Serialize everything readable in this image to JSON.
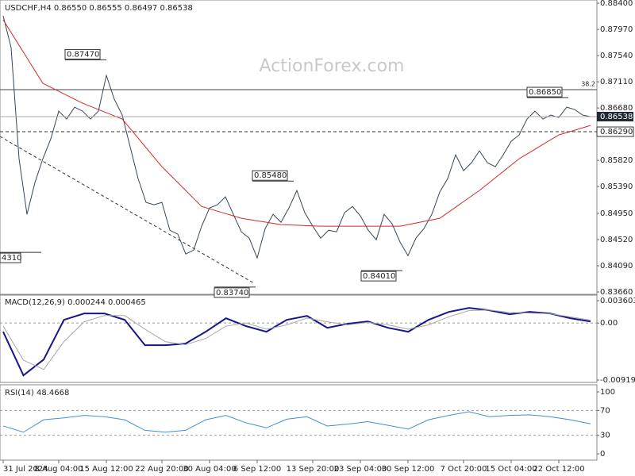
{
  "watermark": "ActionForex.com",
  "chart_data": [
    {
      "type": "line",
      "title": "USDCHF,H4 0.86550 0.86555 0.86497 0.86538",
      "ylim": [
        0.8366,
        0.884
      ],
      "yticks": [
        {
          "value": 0.884,
          "label": "0.88400"
        },
        {
          "value": 0.8797,
          "label": "0.87970"
        },
        {
          "value": 0.8754,
          "label": "0.87540"
        },
        {
          "value": 0.8711,
          "label": "0.87110"
        },
        {
          "value": 0.8668,
          "label": "0.86680"
        },
        {
          "value": 0.8582,
          "label": "0.85820"
        },
        {
          "value": 0.8539,
          "label": "0.85390"
        },
        {
          "value": 0.8495,
          "label": "0.84950"
        },
        {
          "value": 0.8452,
          "label": "0.84520"
        },
        {
          "value": 0.8409,
          "label": "0.84090"
        },
        {
          "value": 0.8366,
          "label": "0.83660"
        }
      ],
      "categories": [
        "31 Jul 2024",
        null,
        null,
        null,
        null,
        null,
        null,
        "8 Aug 04:00",
        null,
        null,
        null,
        null,
        null,
        "15 Aug 12:00",
        null,
        null,
        null,
        null,
        null,
        null,
        "22 Aug 20:00",
        null,
        null,
        null,
        null,
        null,
        "30 Aug 04:00",
        null,
        null,
        null,
        null,
        null,
        "6 Sep 12:00",
        null,
        null,
        null,
        null,
        null,
        null,
        "13 Sep 20:00",
        null,
        null,
        null,
        null,
        null,
        "23 Sep 04:00",
        null,
        null,
        null,
        null,
        null,
        "30 Sep 12:00",
        null,
        null,
        null,
        null,
        null,
        null,
        "7 Oct 20:00",
        null,
        null,
        null,
        null,
        null,
        "15 Oct 04:00",
        null,
        null,
        null,
        null,
        null,
        "22 Oct 12:00",
        null,
        null,
        null,
        null
      ],
      "series": [
        {
          "color": "#34475a",
          "values": [
            0.88192,
            0.8767,
            0.85846,
            0.84934,
            0.85455,
            0.85846,
            0.86172,
            0.86628,
            0.86498,
            0.86693,
            0.86628,
            0.86498,
            0.86628,
            0.87214,
            0.86823,
            0.86563,
            0.86042,
            0.8552,
            0.8513,
            0.85091,
            0.8513,
            0.84673,
            0.84608,
            0.84283,
            0.84348,
            0.84739,
            0.85038,
            0.85091,
            0.85221,
            0.84934,
            0.84647,
            0.84543,
            0.84217,
            0.84699,
            0.84934,
            0.84804,
            0.85038,
            0.85325,
            0.8496,
            0.84739,
            0.84543,
            0.84673,
            0.84647,
            0.8496,
            0.85064,
            0.84908,
            0.84673,
            0.84517,
            0.84934,
            0.84778,
            0.84478,
            0.84257,
            0.84543,
            0.84699,
            0.84934,
            0.85299,
            0.8552,
            0.85911,
            0.85651,
            0.85781,
            0.85976,
            0.85781,
            0.85716,
            0.85911,
            0.86133,
            0.86237,
            0.86498,
            0.86628,
            0.86498,
            0.86563,
            0.86524,
            0.86693,
            0.86654,
            0.86563,
            0.86538
          ]
        },
        {
          "color": "#d42a2a",
          "values": [
            0.88126,
            0.87918,
            0.87709,
            0.87501,
            0.87292,
            0.87084,
            0.87019,
            0.86954,
            0.86889,
            0.86823,
            0.86758,
            0.86706,
            0.86654,
            0.86602,
            0.8655,
            0.86498,
            0.86342,
            0.86185,
            0.86029,
            0.85872,
            0.85716,
            0.85586,
            0.85455,
            0.85325,
            0.85194,
            0.85064,
            0.85025,
            0.84986,
            0.84947,
            0.84908,
            0.84869,
            0.84848,
            0.84827,
            0.84807,
            0.84786,
            0.84765,
            0.8476,
            0.84755,
            0.84749,
            0.84744,
            0.84739,
            0.84739,
            0.84739,
            0.84739,
            0.84739,
            0.84739,
            0.84739,
            0.84739,
            0.84739,
            0.84739,
            0.84739,
            0.84765,
            0.84791,
            0.84817,
            0.84843,
            0.84869,
            0.8496,
            0.85051,
            0.85143,
            0.85234,
            0.85325,
            0.85429,
            0.85533,
            0.85638,
            0.85742,
            0.85846,
            0.85924,
            0.86002,
            0.86081,
            0.86159,
            0.86237,
            0.86276,
            0.86315,
            0.86354,
            0.86393
          ]
        }
      ],
      "fib_level": {
        "value": 0.8698,
        "label": "38.2"
      },
      "support": {
        "value": 0.8629,
        "label": "0.86290"
      },
      "last_price": {
        "value": 0.86538,
        "label": "0.86538"
      },
      "annotations": [
        {
          "value": 0.8747,
          "label": "0.87470"
        },
        {
          "value": 0.8431,
          "label": "4310"
        },
        {
          "value": 0.8374,
          "label": "0.83740"
        },
        {
          "value": 0.8548,
          "label": "0.85480"
        },
        {
          "value": 0.8401,
          "label": "0.84010"
        },
        {
          "value": 0.8685,
          "label": "0.86850"
        }
      ]
    },
    {
      "type": "line",
      "title": "MACD(12,26,9) 0.000244 0.000465",
      "ylim": [
        -0.00958,
        0.0045
      ],
      "yticks": [
        0.003603,
        {
          "value": 0,
          "label": "0.00"
        },
        -0.009198
      ],
      "series": [
        {
          "color": "#16168a",
          "values": [
            -0.00141,
            -0.00845,
            -0.00589,
            0.00051,
            0.00154,
            0.00154,
            0.00051,
            -0.00358,
            -0.00358,
            -0.00333,
            -0.00141,
            0.00077,
            -0.00051,
            -0.00141,
            0.00051,
            0.00115,
            -0.00077,
            -0.00013,
            0.00026,
            -0.00077,
            -0.00141,
            0.00051,
            0.00179,
            0.00243,
            0.00205,
            0.00141,
            0.00179,
            0.00154,
            0.00077,
            0.00024
          ]
        },
        {
          "color": "#a8a8a8",
          "values": [
            -0.0005,
            -0.006,
            -0.0075,
            -0.003,
            0.0002,
            0.0012,
            0.0012,
            -0.001,
            -0.003,
            -0.0035,
            -0.0025,
            -0.0005,
            0.0,
            -0.001,
            -0.0003,
            0.0008,
            0.0002,
            -0.0003,
            0.0001,
            -0.0003,
            -0.001,
            -0.0003,
            0.001,
            0.002,
            0.0021,
            0.0017,
            0.0016,
            0.0015,
            0.001,
            0.00047
          ]
        }
      ]
    },
    {
      "type": "line",
      "title": "RSI(14) 48.4668",
      "ylim": [
        -23,
        109
      ],
      "yticks": [
        100,
        70,
        30,
        0
      ],
      "series": [
        {
          "color": "#3f8fd8",
          "values": [
            45,
            35,
            55,
            58,
            62,
            60,
            55,
            38,
            35,
            38,
            55,
            62,
            50,
            42,
            56,
            60,
            45,
            48,
            52,
            46,
            40,
            55,
            62,
            68,
            60,
            62,
            63,
            60,
            55,
            48.4668
          ]
        }
      ]
    }
  ]
}
